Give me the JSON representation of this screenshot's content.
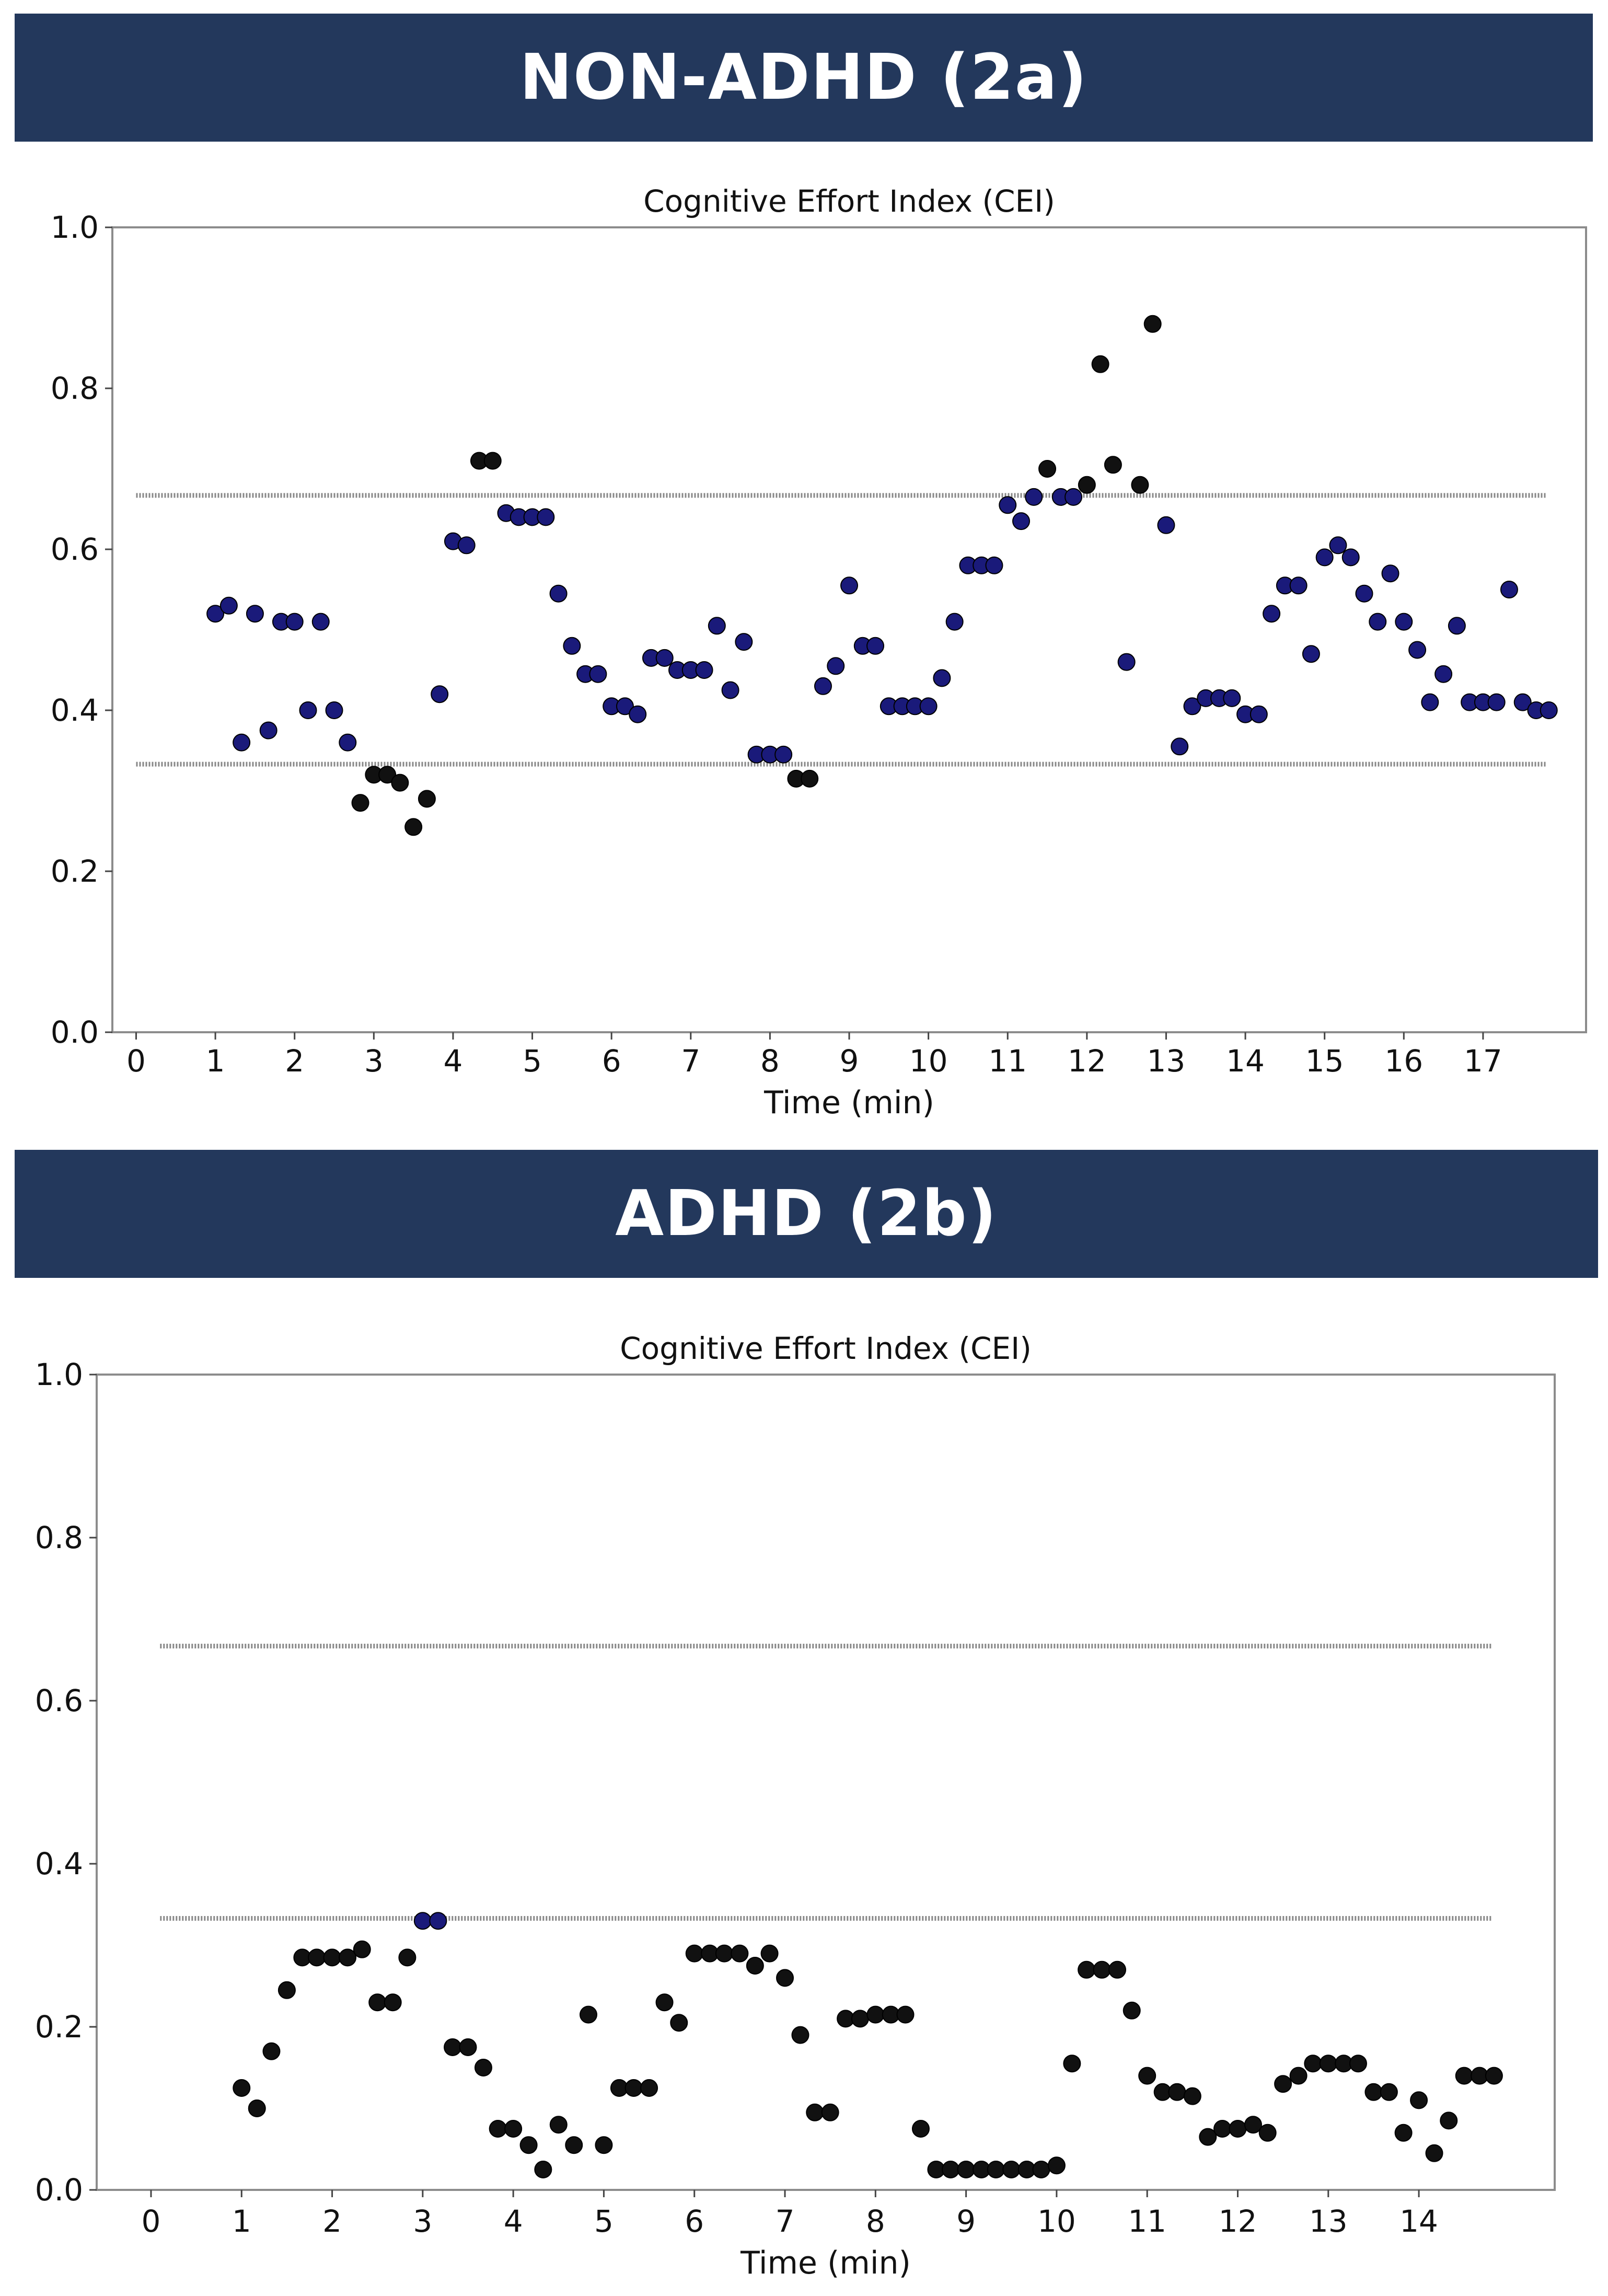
{
  "panels": [
    {
      "title": "NON-ADHD (2a)"
    },
    {
      "title": "ADHD (2b)"
    }
  ],
  "colors": {
    "banner": "#23385c",
    "point_normal": "#1a1a7a",
    "point_outside": "#111111",
    "threshold": "#888888"
  },
  "chart_data": [
    {
      "type": "scatter",
      "title": "Cognitive Effort Index (CEI)",
      "xlabel": "Time (min)",
      "ylabel": "",
      "xlim": [
        -0.3,
        18.3
      ],
      "ylim": [
        0.0,
        1.0
      ],
      "xticks": [
        0,
        1,
        2,
        3,
        4,
        5,
        6,
        7,
        8,
        9,
        10,
        11,
        12,
        13,
        14,
        15,
        16,
        17
      ],
      "yticks": [
        "0.0",
        "0.2",
        "0.4",
        "0.6",
        "0.8",
        "1.0"
      ],
      "thresholds": [
        0.333,
        0.667
      ],
      "threshold_range": [
        0,
        17.8
      ],
      "grid": false,
      "legend": "none",
      "points": [
        [
          1.0,
          0.52
        ],
        [
          1.17,
          0.53
        ],
        [
          1.33,
          0.36
        ],
        [
          1.5,
          0.52
        ],
        [
          1.67,
          0.375
        ],
        [
          1.83,
          0.51
        ],
        [
          2.0,
          0.51
        ],
        [
          2.17,
          0.4
        ],
        [
          2.33,
          0.51
        ],
        [
          2.5,
          0.4
        ],
        [
          2.67,
          0.36
        ],
        [
          2.83,
          0.285
        ],
        [
          3.0,
          0.32
        ],
        [
          3.17,
          0.32
        ],
        [
          3.33,
          0.31
        ],
        [
          3.5,
          0.255
        ],
        [
          3.67,
          0.29
        ],
        [
          3.83,
          0.42
        ],
        [
          4.0,
          0.61
        ],
        [
          4.17,
          0.605
        ],
        [
          4.33,
          0.71
        ],
        [
          4.5,
          0.71
        ],
        [
          4.67,
          0.645
        ],
        [
          4.83,
          0.64
        ],
        [
          5.0,
          0.64
        ],
        [
          5.17,
          0.64
        ],
        [
          5.33,
          0.545
        ],
        [
          5.5,
          0.48
        ],
        [
          5.67,
          0.445
        ],
        [
          5.83,
          0.445
        ],
        [
          6.0,
          0.405
        ],
        [
          6.17,
          0.405
        ],
        [
          6.33,
          0.395
        ],
        [
          6.5,
          0.465
        ],
        [
          6.67,
          0.465
        ],
        [
          6.83,
          0.45
        ],
        [
          7.0,
          0.45
        ],
        [
          7.17,
          0.45
        ],
        [
          7.33,
          0.505
        ],
        [
          7.5,
          0.425
        ],
        [
          7.67,
          0.485
        ],
        [
          7.83,
          0.345
        ],
        [
          8.0,
          0.345
        ],
        [
          8.17,
          0.345
        ],
        [
          8.33,
          0.315
        ],
        [
          8.5,
          0.315
        ],
        [
          8.67,
          0.43
        ],
        [
          8.83,
          0.455
        ],
        [
          9.0,
          0.555
        ],
        [
          9.17,
          0.48
        ],
        [
          9.33,
          0.48
        ],
        [
          9.5,
          0.405
        ],
        [
          9.67,
          0.405
        ],
        [
          9.83,
          0.405
        ],
        [
          10.0,
          0.405
        ],
        [
          10.17,
          0.44
        ],
        [
          10.33,
          0.51
        ],
        [
          10.5,
          0.58
        ],
        [
          10.67,
          0.58
        ],
        [
          10.83,
          0.58
        ],
        [
          11.0,
          0.655
        ],
        [
          11.17,
          0.635
        ],
        [
          11.33,
          0.665
        ],
        [
          11.5,
          0.7
        ],
        [
          11.67,
          0.665
        ],
        [
          11.83,
          0.665
        ],
        [
          12.0,
          0.68
        ],
        [
          12.17,
          0.83
        ],
        [
          12.33,
          0.705
        ],
        [
          12.5,
          0.46
        ],
        [
          12.67,
          0.68
        ],
        [
          12.83,
          0.88
        ],
        [
          13.0,
          0.63
        ],
        [
          13.17,
          0.355
        ],
        [
          13.33,
          0.405
        ],
        [
          13.5,
          0.415
        ],
        [
          13.67,
          0.415
        ],
        [
          13.83,
          0.415
        ],
        [
          14.0,
          0.395
        ],
        [
          14.17,
          0.395
        ],
        [
          14.33,
          0.52
        ],
        [
          14.5,
          0.555
        ],
        [
          14.67,
          0.555
        ],
        [
          14.83,
          0.47
        ],
        [
          15.0,
          0.59
        ],
        [
          15.17,
          0.605
        ],
        [
          15.33,
          0.59
        ],
        [
          15.5,
          0.545
        ],
        [
          15.67,
          0.51
        ],
        [
          15.83,
          0.57
        ],
        [
          16.0,
          0.51
        ],
        [
          16.17,
          0.475
        ],
        [
          16.33,
          0.41
        ],
        [
          16.5,
          0.445
        ],
        [
          16.67,
          0.505
        ],
        [
          16.83,
          0.41
        ],
        [
          17.0,
          0.41
        ],
        [
          17.17,
          0.41
        ],
        [
          17.33,
          0.55
        ],
        [
          17.5,
          0.41
        ],
        [
          17.67,
          0.4
        ],
        [
          17.83,
          0.4
        ]
      ]
    },
    {
      "type": "scatter",
      "title": "Cognitive Effort Index (CEI)",
      "xlabel": "Time (min)",
      "ylabel": "",
      "xlim": [
        -0.6,
        15.5
      ],
      "ylim": [
        0.0,
        1.0
      ],
      "xticks": [
        0,
        1,
        2,
        3,
        4,
        5,
        6,
        7,
        8,
        9,
        10,
        11,
        12,
        13,
        14
      ],
      "yticks": [
        "0.0",
        "0.2",
        "0.4",
        "0.6",
        "0.8",
        "1.0"
      ],
      "thresholds": [
        0.333,
        0.667
      ],
      "threshold_range": [
        0.1,
        14.8
      ],
      "grid": false,
      "legend": "none",
      "points": [
        [
          1.0,
          0.125
        ],
        [
          1.17,
          0.1
        ],
        [
          1.33,
          0.17
        ],
        [
          1.5,
          0.245
        ],
        [
          1.67,
          0.285
        ],
        [
          1.83,
          0.285
        ],
        [
          2.0,
          0.285
        ],
        [
          2.17,
          0.285
        ],
        [
          2.33,
          0.295
        ],
        [
          2.5,
          0.23
        ],
        [
          2.67,
          0.23
        ],
        [
          2.83,
          0.285
        ],
        [
          3.0,
          0.33
        ],
        [
          3.17,
          0.33
        ],
        [
          3.33,
          0.175
        ],
        [
          3.5,
          0.175
        ],
        [
          3.67,
          0.15
        ],
        [
          3.83,
          0.075
        ],
        [
          4.0,
          0.075
        ],
        [
          4.17,
          0.055
        ],
        [
          4.33,
          0.025
        ],
        [
          4.5,
          0.08
        ],
        [
          4.67,
          0.055
        ],
        [
          4.83,
          0.215
        ],
        [
          5.0,
          0.055
        ],
        [
          5.17,
          0.125
        ],
        [
          5.33,
          0.125
        ],
        [
          5.5,
          0.125
        ],
        [
          5.67,
          0.23
        ],
        [
          5.83,
          0.205
        ],
        [
          6.0,
          0.29
        ],
        [
          6.17,
          0.29
        ],
        [
          6.33,
          0.29
        ],
        [
          6.5,
          0.29
        ],
        [
          6.67,
          0.275
        ],
        [
          6.83,
          0.29
        ],
        [
          7.0,
          0.26
        ],
        [
          7.17,
          0.19
        ],
        [
          7.33,
          0.095
        ],
        [
          7.5,
          0.095
        ],
        [
          7.67,
          0.21
        ],
        [
          7.83,
          0.21
        ],
        [
          8.0,
          0.215
        ],
        [
          8.17,
          0.215
        ],
        [
          8.33,
          0.215
        ],
        [
          8.5,
          0.075
        ],
        [
          8.67,
          0.025
        ],
        [
          8.83,
          0.025
        ],
        [
          9.0,
          0.025
        ],
        [
          9.17,
          0.025
        ],
        [
          9.33,
          0.025
        ],
        [
          9.5,
          0.025
        ],
        [
          9.67,
          0.025
        ],
        [
          9.83,
          0.025
        ],
        [
          10.0,
          0.03
        ],
        [
          10.17,
          0.155
        ],
        [
          10.33,
          0.27
        ],
        [
          10.5,
          0.27
        ],
        [
          10.67,
          0.27
        ],
        [
          10.83,
          0.22
        ],
        [
          11.0,
          0.14
        ],
        [
          11.17,
          0.12
        ],
        [
          11.33,
          0.12
        ],
        [
          11.5,
          0.115
        ],
        [
          11.67,
          0.065
        ],
        [
          11.83,
          0.075
        ],
        [
          12.0,
          0.075
        ],
        [
          12.17,
          0.08
        ],
        [
          12.33,
          0.07
        ],
        [
          12.5,
          0.13
        ],
        [
          12.67,
          0.14
        ],
        [
          12.83,
          0.155
        ],
        [
          13.0,
          0.155
        ],
        [
          13.17,
          0.155
        ],
        [
          13.33,
          0.155
        ],
        [
          13.5,
          0.12
        ],
        [
          13.67,
          0.12
        ],
        [
          13.83,
          0.07
        ],
        [
          14.0,
          0.11
        ],
        [
          14.17,
          0.045
        ],
        [
          14.33,
          0.085
        ],
        [
          14.5,
          0.14
        ],
        [
          14.67,
          0.14
        ],
        [
          14.83,
          0.14
        ]
      ]
    }
  ]
}
